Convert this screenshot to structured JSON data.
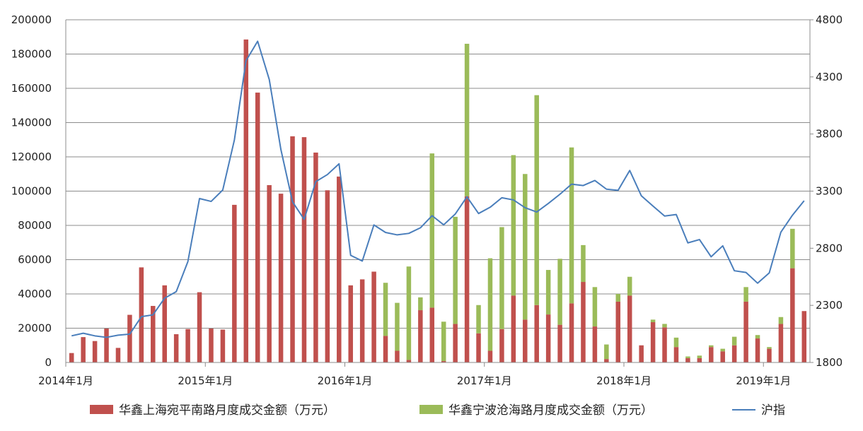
{
  "chart_data": {
    "type": "bar",
    "stacked": true,
    "title": "",
    "x": [
      "2014-01",
      "2014-02",
      "2014-03",
      "2014-04",
      "2014-05",
      "2014-06",
      "2014-07",
      "2014-08",
      "2014-09",
      "2014-10",
      "2014-11",
      "2014-12",
      "2015-01",
      "2015-02",
      "2015-03",
      "2015-04",
      "2015-05",
      "2015-06",
      "2015-07",
      "2015-08",
      "2015-09",
      "2015-10",
      "2015-11",
      "2015-12",
      "2016-01",
      "2016-02",
      "2016-03",
      "2016-04",
      "2016-05",
      "2016-06",
      "2016-07",
      "2016-08",
      "2016-09",
      "2016-10",
      "2016-11",
      "2016-12",
      "2017-01",
      "2017-02",
      "2017-03",
      "2017-04",
      "2017-05",
      "2017-06",
      "2017-07",
      "2017-08",
      "2017-09",
      "2017-10",
      "2017-11",
      "2017-12",
      "2018-01",
      "2018-02",
      "2018-03",
      "2018-04",
      "2018-05",
      "2018-06",
      "2018-07",
      "2018-08",
      "2018-09",
      "2018-10",
      "2018-11",
      "2018-12",
      "2019-01",
      "2019-02",
      "2019-03",
      "2019-04"
    ],
    "x_tick_labels": [
      "2014年1月",
      "2015年1月",
      "2016年1月",
      "2017年1月",
      "2018年1月",
      "2019年1月"
    ],
    "y_left": {
      "min": 0,
      "max": 200000,
      "step": 20000,
      "tick_labels": [
        "0",
        "20000",
        "40000",
        "60000",
        "80000",
        "100000",
        "120000",
        "140000",
        "160000",
        "180000",
        "200000"
      ]
    },
    "y_right": {
      "min": 1800,
      "max": 4800,
      "step": 500,
      "tick_labels": [
        "1800",
        "2300",
        "2800",
        "3300",
        "3800",
        "4300",
        "4800"
      ]
    },
    "grid": true,
    "legend_position": "bottom",
    "series": [
      {
        "name": "华鑫上海宛平南路月度成交金额（万元）",
        "kind": "bar",
        "axis": "left",
        "color": "#c0504d",
        "values": [
          5500,
          14800,
          12500,
          19800,
          8500,
          27800,
          55500,
          33000,
          45000,
          16500,
          19500,
          41000,
          19800,
          19200,
          92000,
          188500,
          157500,
          103500,
          98500,
          132000,
          131500,
          122500,
          100500,
          108500,
          45000,
          48500,
          53000,
          15500,
          6800,
          1500,
          30500,
          32000,
          800,
          22500,
          97000,
          17000,
          6800,
          19500,
          39000,
          25000,
          33500,
          28000,
          22000,
          34500,
          47000,
          21000,
          2000,
          35500,
          39000,
          10000,
          23500,
          20500,
          9000,
          2500,
          2500,
          9000,
          6500,
          10000,
          35500,
          14000,
          8000,
          22500,
          55000,
          30000
        ]
      },
      {
        "name": "华鑫宁波沧海路月度成交金额（万元）",
        "kind": "bar",
        "axis": "left",
        "color": "#9bbb59",
        "values": [
          0,
          0,
          0,
          0,
          0,
          0,
          0,
          0,
          0,
          0,
          0,
          0,
          0,
          0,
          0,
          0,
          0,
          0,
          0,
          0,
          0,
          0,
          0,
          0,
          0,
          0,
          0,
          31000,
          28000,
          54500,
          7500,
          90000,
          23000,
          62500,
          89000,
          16500,
          54000,
          59500,
          82000,
          85000,
          122500,
          26000,
          38500,
          91000,
          21500,
          23000,
          8500,
          4500,
          11000,
          0,
          1500,
          2000,
          5500,
          1000,
          1500,
          1000,
          1500,
          5000,
          8500,
          2000,
          1000,
          4000,
          23000,
          0
        ]
      },
      {
        "name": "沪指",
        "kind": "line",
        "axis": "right",
        "color": "#4a7ebb",
        "values": [
          2033,
          2056,
          2033,
          2020,
          2039,
          2048,
          2201,
          2217,
          2363,
          2420,
          2683,
          3235,
          3210,
          3310,
          3748,
          4441,
          4612,
          4277,
          3664,
          3206,
          3053,
          3383,
          3445,
          3539,
          2738,
          2688,
          3004,
          2938,
          2917,
          2930,
          2979,
          3085,
          3005,
          3100,
          3250,
          3104,
          3159,
          3242,
          3223,
          3155,
          3117,
          3192,
          3273,
          3361,
          3349,
          3393,
          3317,
          3307,
          3481,
          3259,
          3169,
          3082,
          3095,
          2847,
          2876,
          2725,
          2821,
          2603,
          2588,
          2494,
          2584,
          2941,
          3090,
          3216
        ]
      }
    ]
  }
}
